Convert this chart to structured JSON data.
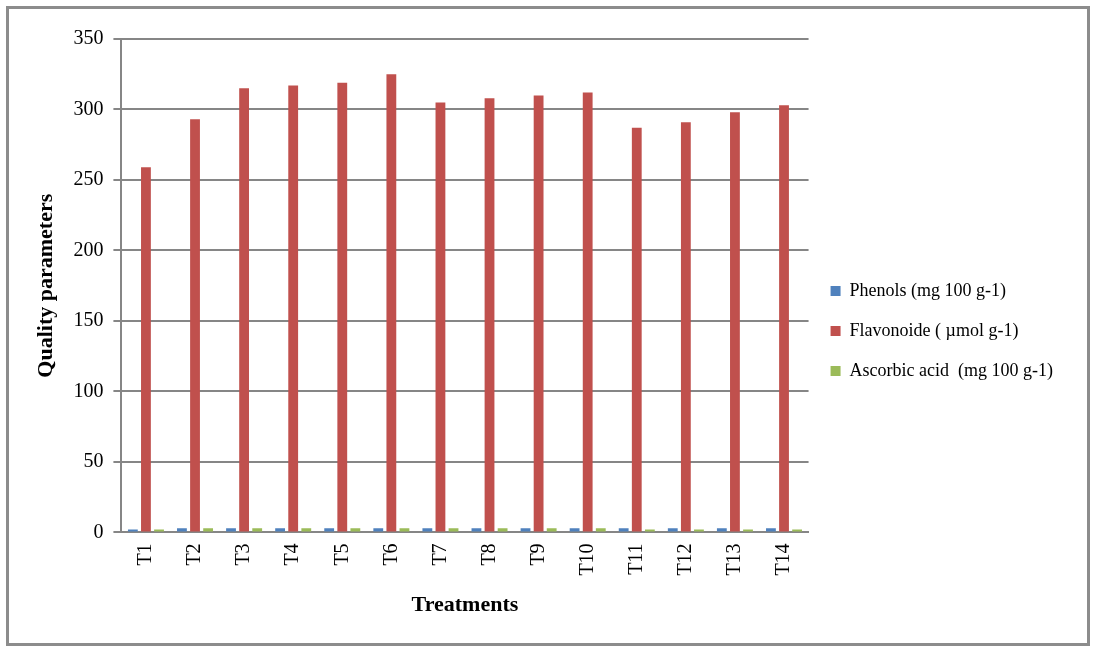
{
  "chart_data": {
    "type": "bar",
    "xlabel": "Treatments",
    "ylabel": "Quality parameters",
    "categories": [
      "T1",
      "T2",
      "T3",
      "T4",
      "T5",
      "T6",
      "T7",
      "T8",
      "T9",
      "T10",
      "T11",
      "T12",
      "T13",
      "T14"
    ],
    "series": [
      {
        "name": "Phenols (mg 100 g-1)",
        "color": "#4f81bd",
        "values": [
          2,
          3,
          3,
          3,
          3,
          3,
          3,
          3,
          3,
          3,
          3,
          3,
          3,
          3
        ]
      },
      {
        "name": "Flavonoide ( µmol g-1)",
        "color": "#c0504d",
        "values": [
          259,
          293,
          315,
          317,
          319,
          325,
          305,
          308,
          310,
          312,
          287,
          291,
          298,
          303
        ]
      },
      {
        "name": "Ascorbic acid  (mg 100 g-1)",
        "color": "#9bbb59",
        "values": [
          2,
          3,
          3,
          3,
          3,
          3,
          3,
          3,
          3,
          3,
          2,
          2,
          2,
          2
        ]
      }
    ],
    "ylim": [
      0,
      350
    ],
    "yticks": [
      0,
      50,
      100,
      150,
      200,
      250,
      300,
      350
    ],
    "grid": "y",
    "legend": "right"
  }
}
